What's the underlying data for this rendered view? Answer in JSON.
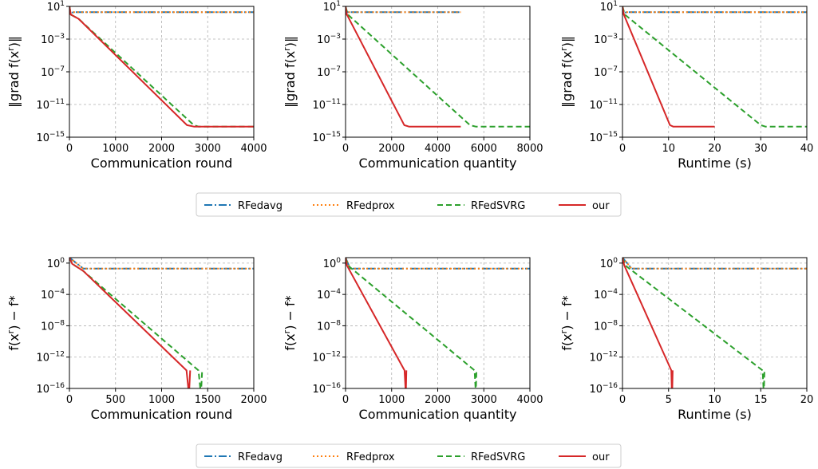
{
  "series_styles": [
    {
      "key": "RFedavg",
      "color": "#1f77b4",
      "dash": "10,3,2,3"
    },
    {
      "key": "RFedprox",
      "color": "#ff7f0e",
      "dash": "2,3"
    },
    {
      "key": "RFedSVRG",
      "color": "#2ca02c",
      "dash": "7,4"
    },
    {
      "key": "our",
      "color": "#d62728",
      "dash": ""
    }
  ],
  "legends": [
    {
      "entries": [
        "RFedavg",
        "RFedprox",
        "RFedSVRG",
        "our"
      ]
    },
    {
      "entries": [
        "RFedavg",
        "RFedprox",
        "RFedSVRG",
        "our"
      ]
    }
  ],
  "chart_data": [
    {
      "type": "line",
      "yscale": "log",
      "grid": true,
      "xlabel": "Communication round",
      "ylabel": "‖grad f(x^r)‖",
      "xlim": [
        0,
        4000
      ],
      "ylim": [
        1e-15,
        10
      ],
      "xticks": [
        0,
        1000,
        2000,
        3000,
        4000
      ],
      "yticks": [
        {
          "v": 10.0,
          "m": "10",
          "e": "1"
        },
        {
          "v": 0.001,
          "m": "10",
          "e": "−3"
        },
        {
          "v": 1e-07,
          "m": "10",
          "e": "−7"
        },
        {
          "v": 1e-11,
          "m": "10",
          "e": "−11"
        },
        {
          "v": 1e-15,
          "m": "10",
          "e": "−15"
        }
      ],
      "series": [
        {
          "key": "RFedavg",
          "x": [
            0,
            30,
            80,
            4000
          ],
          "y": [
            10,
            1,
            2,
            2
          ]
        },
        {
          "key": "RFedprox",
          "x": [
            0,
            30,
            80,
            4000
          ],
          "y": [
            10,
            1,
            2,
            2
          ]
        },
        {
          "key": "RFedSVRG",
          "x": [
            0,
            30,
            200,
            2700,
            2800,
            4000
          ],
          "y": [
            10,
            1,
            0.3,
            3e-14,
            2e-14,
            2e-14
          ]
        },
        {
          "key": "our",
          "x": [
            0,
            30,
            200,
            2550,
            2700,
            4000
          ],
          "y": [
            10,
            1,
            0.3,
            3e-14,
            2e-14,
            2e-14
          ]
        }
      ]
    },
    {
      "type": "line",
      "yscale": "log",
      "grid": true,
      "xlabel": "Communication quantity",
      "ylabel": "‖grad f(x^r)‖",
      "xlim": [
        0,
        8000
      ],
      "ylim": [
        1e-15,
        10
      ],
      "xticks": [
        0,
        2000,
        4000,
        6000,
        8000
      ],
      "yticks": [
        {
          "v": 10.0,
          "m": "10",
          "e": "1"
        },
        {
          "v": 0.001,
          "m": "10",
          "e": "−3"
        },
        {
          "v": 1e-07,
          "m": "10",
          "e": "−7"
        },
        {
          "v": 1e-11,
          "m": "10",
          "e": "−11"
        },
        {
          "v": 1e-15,
          "m": "10",
          "e": "−15"
        }
      ],
      "series": [
        {
          "key": "RFedavg",
          "x": [
            0,
            30,
            80,
            5000
          ],
          "y": [
            10,
            1,
            2,
            2
          ]
        },
        {
          "key": "RFedprox",
          "x": [
            0,
            30,
            80,
            5000
          ],
          "y": [
            10,
            1,
            2,
            2
          ]
        },
        {
          "key": "RFedSVRG",
          "x": [
            0,
            100,
            5400,
            5650,
            8000
          ],
          "y": [
            10,
            1,
            3e-14,
            2e-14,
            2e-14
          ]
        },
        {
          "key": "our",
          "x": [
            0,
            60,
            2550,
            2750,
            5000
          ],
          "y": [
            10,
            1,
            3e-14,
            2e-14,
            2e-14
          ]
        }
      ]
    },
    {
      "type": "line",
      "yscale": "log",
      "grid": true,
      "xlabel": "Runtime (s)",
      "ylabel": "‖grad f(x^r)‖",
      "xlim": [
        0,
        40
      ],
      "ylim": [
        1e-15,
        10
      ],
      "xticks": [
        0,
        10,
        20,
        30,
        40
      ],
      "yticks": [
        {
          "v": 10.0,
          "m": "10",
          "e": "1"
        },
        {
          "v": 0.001,
          "m": "10",
          "e": "−3"
        },
        {
          "v": 1e-07,
          "m": "10",
          "e": "−7"
        },
        {
          "v": 1e-11,
          "m": "10",
          "e": "−11"
        },
        {
          "v": 1e-15,
          "m": "10",
          "e": "−15"
        }
      ],
      "series": [
        {
          "key": "RFedavg",
          "x": [
            0,
            0.3,
            0.8,
            40
          ],
          "y": [
            10,
            1,
            2,
            2
          ]
        },
        {
          "key": "RFedprox",
          "x": [
            0,
            0.3,
            0.8,
            40
          ],
          "y": [
            10,
            1,
            2,
            2
          ]
        },
        {
          "key": "RFedSVRG",
          "x": [
            0,
            0.5,
            30,
            31,
            40
          ],
          "y": [
            10,
            1,
            3e-14,
            2e-14,
            2e-14
          ]
        },
        {
          "key": "our",
          "x": [
            0,
            0.3,
            10.3,
            11,
            20
          ],
          "y": [
            10,
            1,
            3e-14,
            2e-14,
            2e-14
          ]
        }
      ]
    },
    {
      "type": "line",
      "yscale": "log",
      "grid": true,
      "xlabel": "Communication round",
      "ylabel": "f(x^r) − f*",
      "xlim": [
        0,
        2000
      ],
      "ylim": [
        1e-16,
        5
      ],
      "xticks": [
        0,
        500,
        1000,
        1500,
        2000
      ],
      "yticks": [
        {
          "v": 1,
          "m": "10",
          "e": "0"
        },
        {
          "v": 0.0001,
          "m": "10",
          "e": "−4"
        },
        {
          "v": 1e-08,
          "m": "10",
          "e": "−8"
        },
        {
          "v": 1e-12,
          "m": "10",
          "e": "−12"
        },
        {
          "v": 1e-16,
          "m": "10",
          "e": "−16"
        }
      ],
      "series": [
        {
          "key": "RFedavg",
          "x": [
            0,
            150,
            2000
          ],
          "y": [
            5,
            0.2,
            0.2
          ]
        },
        {
          "key": "RFedprox",
          "x": [
            0,
            150,
            2000
          ],
          "y": [
            5,
            0.2,
            0.2
          ]
        },
        {
          "key": "RFedSVRG",
          "x": [
            0,
            30,
            150,
            1400,
            1420,
            1430,
            1440
          ],
          "y": [
            5,
            0.8,
            0.1,
            2e-14,
            1e-16,
            1e-16,
            2e-14
          ]
        },
        {
          "key": "our",
          "x": [
            0,
            30,
            150,
            1270,
            1290,
            1300,
            1310
          ],
          "y": [
            5,
            0.8,
            0.1,
            2e-14,
            1e-16,
            1e-16,
            2e-14
          ]
        }
      ]
    },
    {
      "type": "line",
      "yscale": "log",
      "grid": true,
      "xlabel": "Communication quantity",
      "ylabel": "f(x^r) − f*",
      "xlim": [
        0,
        4000
      ],
      "ylim": [
        1e-16,
        5
      ],
      "xticks": [
        0,
        1000,
        2000,
        3000,
        4000
      ],
      "yticks": [
        {
          "v": 1,
          "m": "10",
          "e": "0"
        },
        {
          "v": 0.0001,
          "m": "10",
          "e": "−4"
        },
        {
          "v": 1e-08,
          "m": "10",
          "e": "−8"
        },
        {
          "v": 1e-12,
          "m": "10",
          "e": "−12"
        },
        {
          "v": 1e-16,
          "m": "10",
          "e": "−16"
        }
      ],
      "series": [
        {
          "key": "RFedavg",
          "x": [
            0,
            100,
            4000
          ],
          "y": [
            5,
            0.2,
            0.2
          ]
        },
        {
          "key": "RFedprox",
          "x": [
            0,
            100,
            4000
          ],
          "y": [
            5,
            0.2,
            0.2
          ]
        },
        {
          "key": "RFedSVRG",
          "x": [
            0,
            50,
            2800,
            2820,
            2830,
            2840
          ],
          "y": [
            5,
            0.5,
            2e-14,
            1e-16,
            1e-16,
            2e-14
          ]
        },
        {
          "key": "our",
          "x": [
            0,
            30,
            1280,
            1300,
            1310,
            1320
          ],
          "y": [
            5,
            0.5,
            2e-14,
            1e-16,
            1e-16,
            2e-14
          ]
        }
      ]
    },
    {
      "type": "line",
      "yscale": "log",
      "grid": true,
      "xlabel": "Runtime (s)",
      "ylabel": "f(x^r) − f*",
      "xlim": [
        0,
        20
      ],
      "ylim": [
        1e-16,
        5
      ],
      "xticks": [
        0,
        5,
        10,
        15,
        20
      ],
      "yticks": [
        {
          "v": 1,
          "m": "10",
          "e": "0"
        },
        {
          "v": 0.0001,
          "m": "10",
          "e": "−4"
        },
        {
          "v": 1e-08,
          "m": "10",
          "e": "−8"
        },
        {
          "v": 1e-12,
          "m": "10",
          "e": "−12"
        },
        {
          "v": 1e-16,
          "m": "10",
          "e": "−16"
        }
      ],
      "series": [
        {
          "key": "RFedavg",
          "x": [
            0,
            1,
            20
          ],
          "y": [
            5,
            0.2,
            0.2
          ]
        },
        {
          "key": "RFedprox",
          "x": [
            0,
            1,
            20
          ],
          "y": [
            5,
            0.2,
            0.2
          ]
        },
        {
          "key": "RFedSVRG",
          "x": [
            0,
            0.3,
            15.2,
            15.3,
            15.35,
            15.4
          ],
          "y": [
            5,
            0.5,
            2e-14,
            1e-16,
            1e-16,
            2e-14
          ]
        },
        {
          "key": "our",
          "x": [
            0,
            0.2,
            5.3,
            5.35,
            5.4,
            5.45
          ],
          "y": [
            5,
            0.5,
            2e-14,
            1e-16,
            1e-16,
            2e-14
          ]
        }
      ]
    }
  ]
}
